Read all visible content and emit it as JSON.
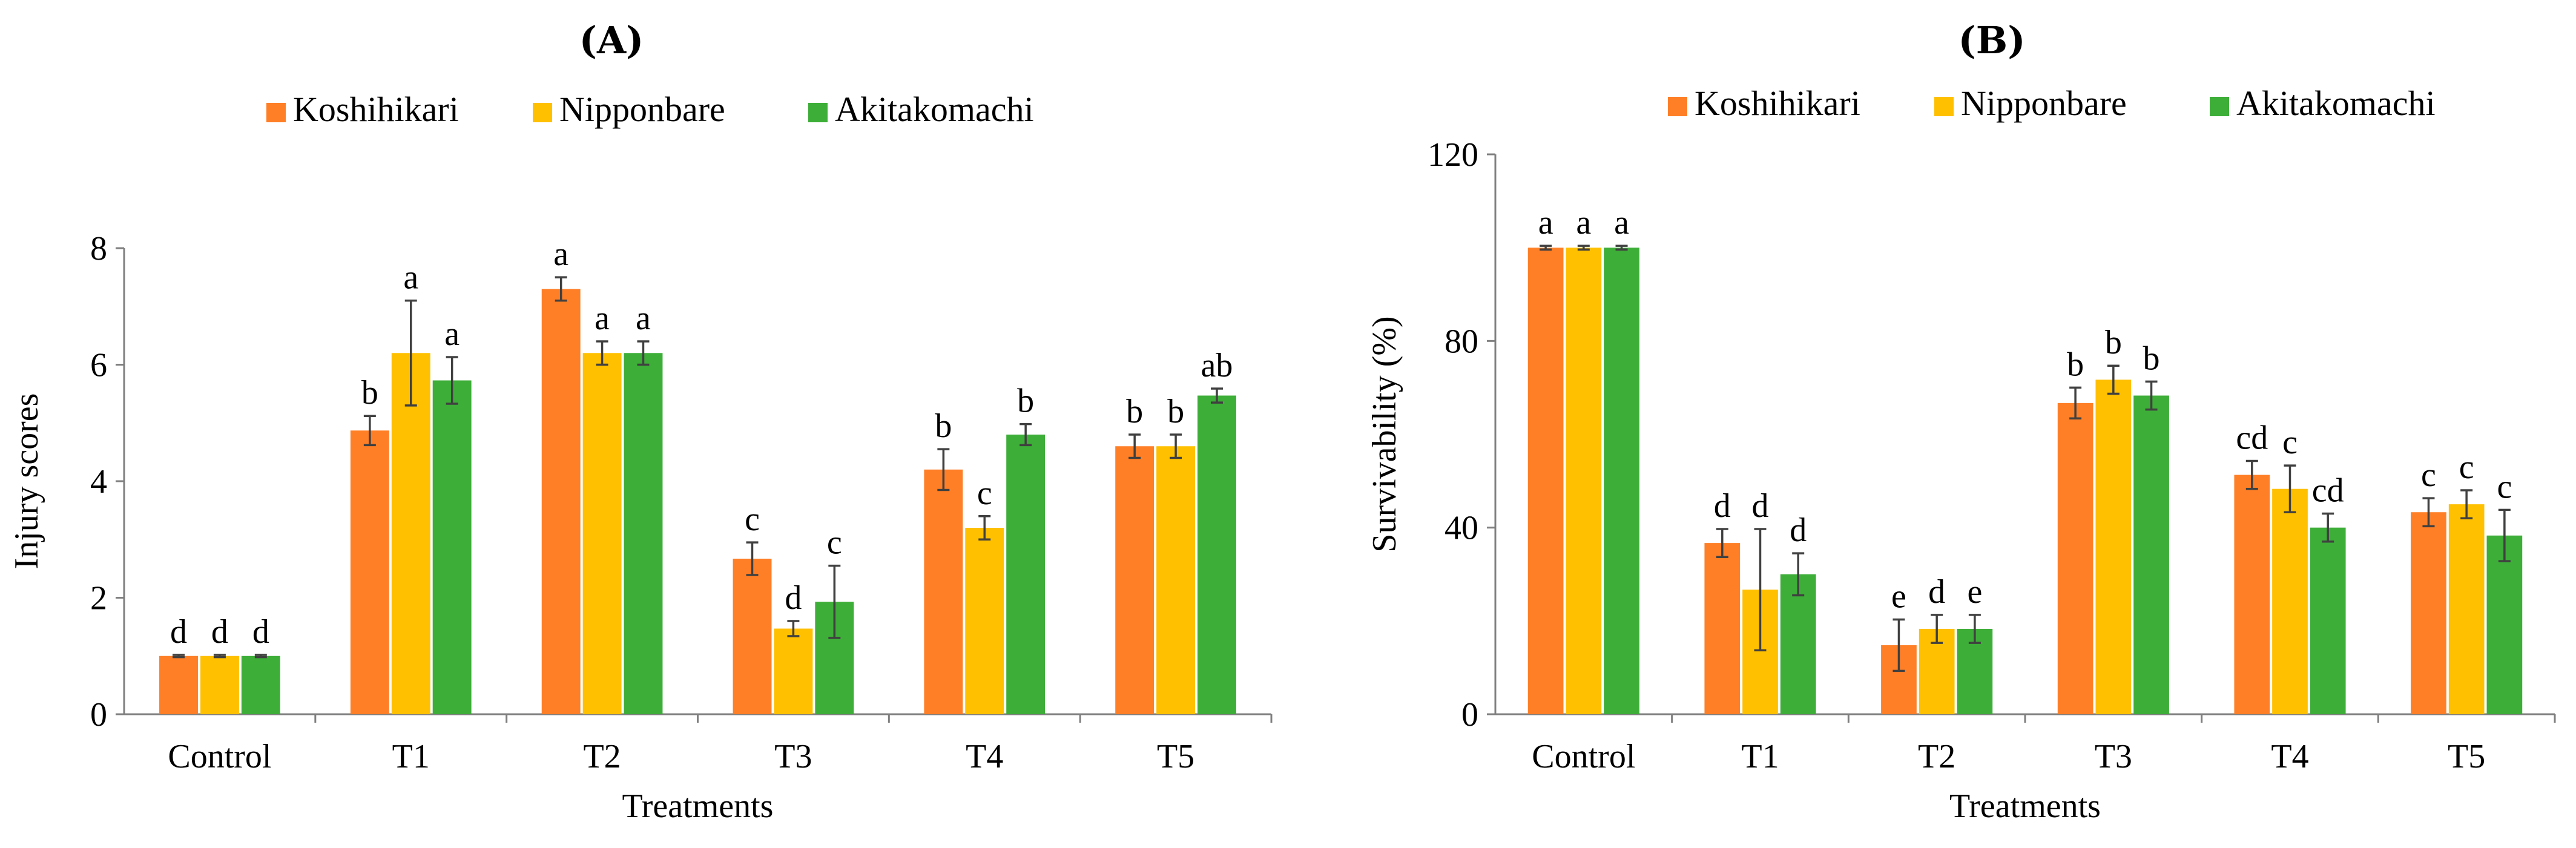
{
  "chart_data": [
    {
      "type": "bar",
      "panel_label": "(A)",
      "title": "(A)",
      "categories": [
        "Control",
        "T1",
        "T2",
        "T3",
        "T4",
        "T5"
      ],
      "xlabel": "Treatments",
      "ylabel": "Injury scores",
      "ylim": [
        0,
        8
      ],
      "yticks": [
        0,
        2,
        4,
        6,
        8
      ],
      "legend_position": "top-center",
      "grid": false,
      "series": [
        {
          "name": "Koshihikari",
          "color": "#FF7F27",
          "values": [
            1.0,
            4.87,
            7.3,
            2.67,
            4.2,
            4.6
          ],
          "errors": [
            0.02,
            0.25,
            0.2,
            0.28,
            0.35,
            0.2
          ],
          "labels": [
            "d",
            "b",
            "a",
            "c",
            "b",
            "b"
          ]
        },
        {
          "name": "Nipponbare",
          "color": "#FFC000",
          "values": [
            1.0,
            6.2,
            6.2,
            1.47,
            3.2,
            4.6
          ],
          "errors": [
            0.02,
            0.9,
            0.2,
            0.13,
            0.2,
            0.2
          ],
          "labels": [
            "d",
            "a",
            "a",
            "d",
            "c",
            "b"
          ]
        },
        {
          "name": "Akitakomachi",
          "color": "#3DAE38",
          "values": [
            1.0,
            5.73,
            6.2,
            1.93,
            4.8,
            5.47
          ],
          "errors": [
            0.02,
            0.4,
            0.2,
            0.62,
            0.18,
            0.12
          ],
          "labels": [
            "d",
            "a",
            "a",
            "c",
            "b",
            "ab"
          ]
        }
      ]
    },
    {
      "type": "bar",
      "panel_label": "(B)",
      "title": "(B)",
      "categories": [
        "Control",
        "T1",
        "T2",
        "T3",
        "T4",
        "T5"
      ],
      "xlabel": "Treatments",
      "ylabel": "Survivability (%)",
      "ylim": [
        0,
        120
      ],
      "yticks": [
        0,
        40,
        80,
        120
      ],
      "legend_position": "top-center",
      "grid": false,
      "series": [
        {
          "name": "Koshihikari",
          "color": "#FF7F27",
          "values": [
            100,
            36.7,
            14.8,
            66.7,
            51.3,
            43.3
          ],
          "errors": [
            0.4,
            3.0,
            5.5,
            3.3,
            3.0,
            3.0
          ],
          "labels": [
            "a",
            "d",
            "e",
            "b",
            "cd",
            "c"
          ]
        },
        {
          "name": "Nipponbare",
          "color": "#FFC000",
          "values": [
            100,
            26.7,
            18.3,
            71.7,
            48.3,
            45.0
          ],
          "errors": [
            0.4,
            13.0,
            3.0,
            3.0,
            5.0,
            3.0
          ],
          "labels": [
            "a",
            "d",
            "d",
            "b",
            "c",
            "c"
          ]
        },
        {
          "name": "Akitakomachi",
          "color": "#3DAE38",
          "values": [
            100,
            30.0,
            18.3,
            68.3,
            40.0,
            38.3
          ],
          "errors": [
            0.4,
            4.5,
            3.0,
            3.0,
            3.0,
            5.5
          ],
          "labels": [
            "a",
            "d",
            "e",
            "b",
            "cd",
            "c"
          ]
        }
      ]
    }
  ]
}
